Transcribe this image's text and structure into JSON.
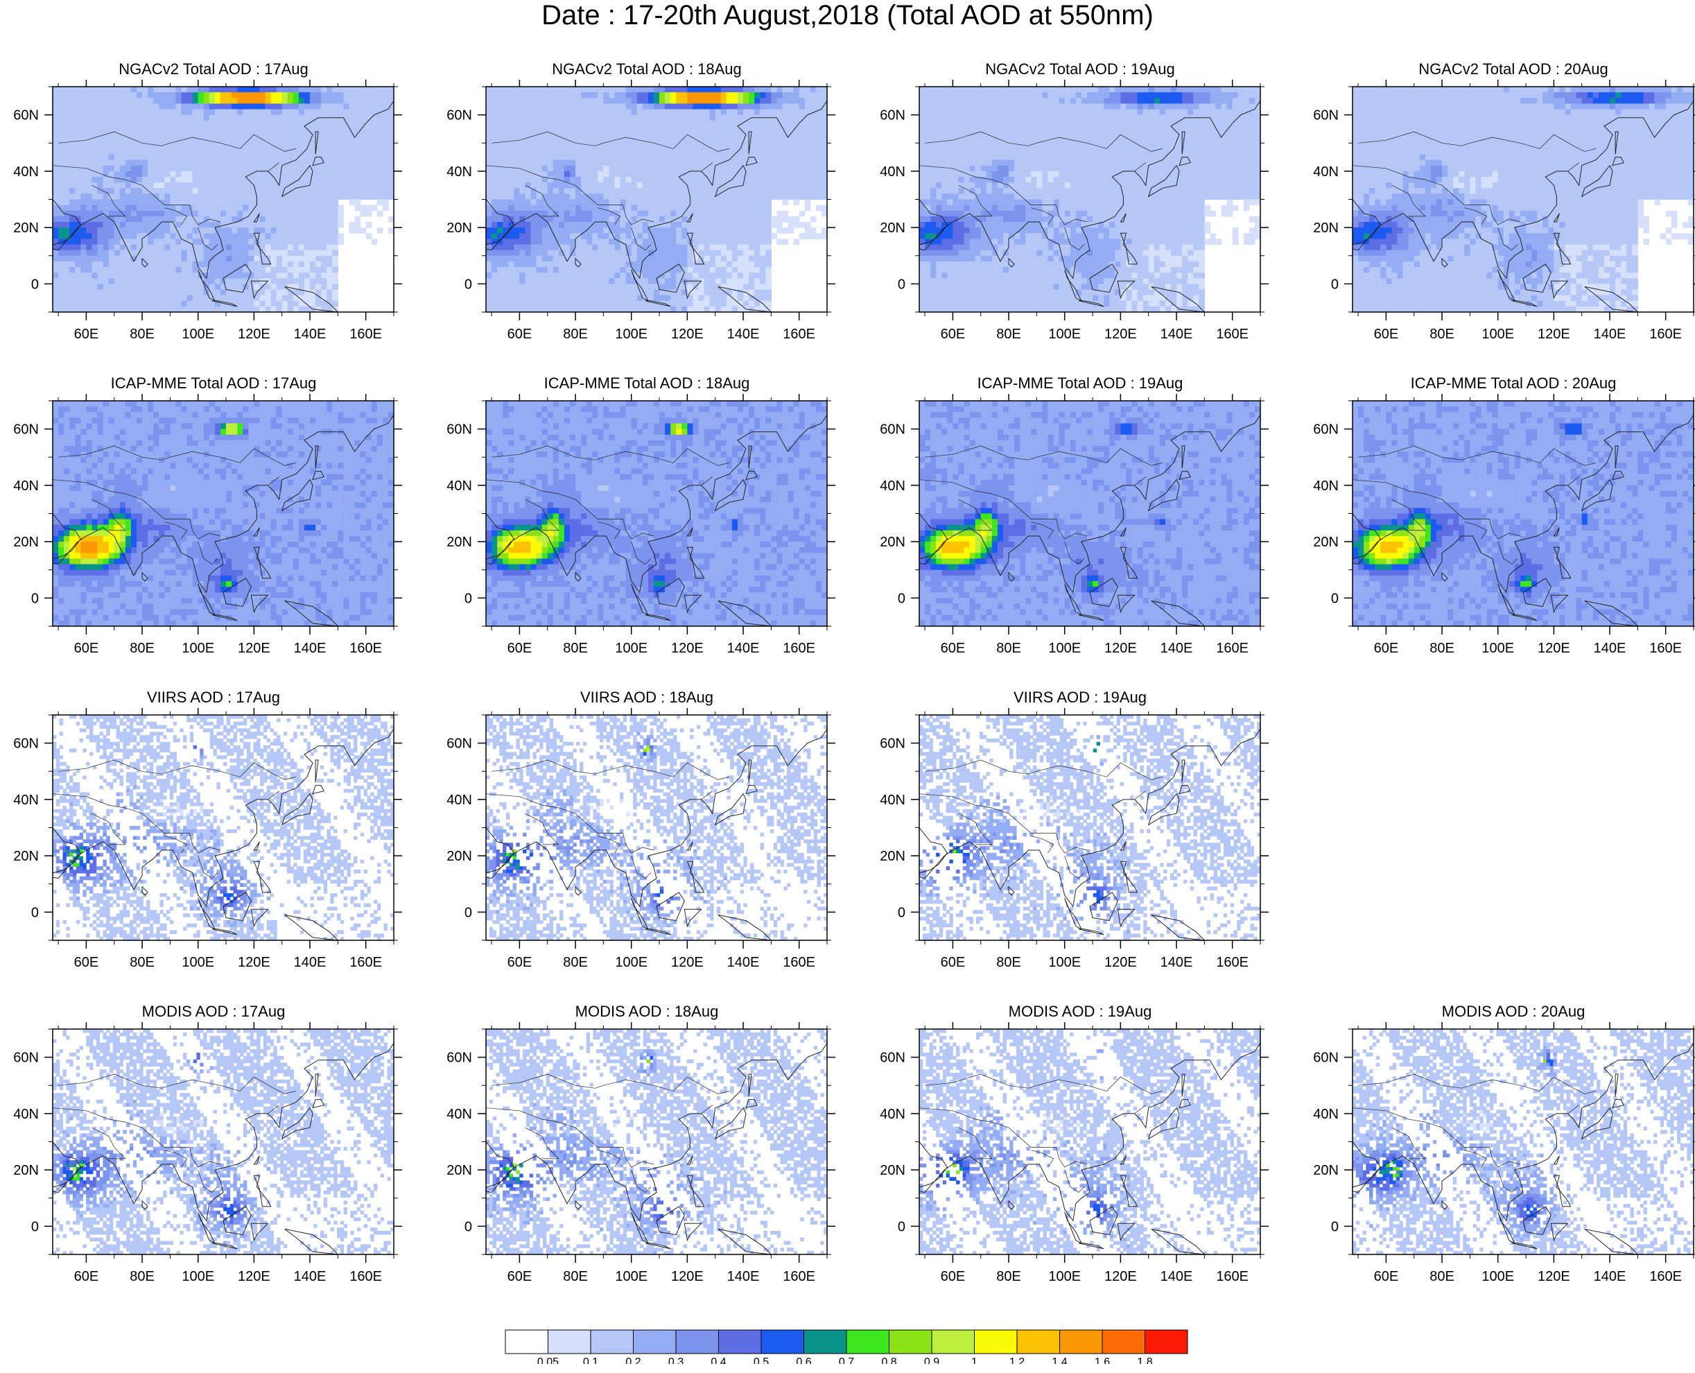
{
  "title": "Date : 17-20th August,2018 (Total AOD at 550nm)",
  "axes": {
    "lon_ticks": [
      "60E",
      "80E",
      "100E",
      "120E",
      "140E",
      "160E"
    ],
    "lat_ticks": [
      "60N",
      "40N",
      "20N",
      "0"
    ]
  },
  "panels": [
    {
      "label": "NGACv2 Total AOD : 17Aug",
      "model": "ngac",
      "variant": 0
    },
    {
      "label": "NGACv2 Total AOD : 18Aug",
      "model": "ngac",
      "variant": 1
    },
    {
      "label": "NGACv2 Total AOD : 19Aug",
      "model": "ngac",
      "variant": 2
    },
    {
      "label": "NGACv2 Total AOD : 20Aug",
      "model": "ngac",
      "variant": 3
    },
    {
      "label": "ICAP-MME Total AOD : 17Aug",
      "model": "icap",
      "variant": 0
    },
    {
      "label": "ICAP-MME Total AOD : 18Aug",
      "model": "icap",
      "variant": 1
    },
    {
      "label": "ICAP-MME Total AOD : 19Aug",
      "model": "icap",
      "variant": 2
    },
    {
      "label": "ICAP-MME Total AOD : 20Aug",
      "model": "icap",
      "variant": 3
    },
    {
      "label": "VIIRS AOD : 17Aug",
      "model": "viirs",
      "variant": 0
    },
    {
      "label": "VIIRS AOD : 18Aug",
      "model": "viirs",
      "variant": 1
    },
    {
      "label": "VIIRS AOD : 19Aug",
      "model": "viirs",
      "variant": 2
    },
    {
      "label": "MODIS AOD : 17Aug",
      "model": "modis",
      "variant": 0
    },
    {
      "label": "MODIS AOD : 18Aug",
      "model": "modis",
      "variant": 1
    },
    {
      "label": "MODIS AOD : 19Aug",
      "model": "modis",
      "variant": 2
    },
    {
      "label": "MODIS AOD : 20Aug",
      "model": "modis",
      "variant": 3
    }
  ],
  "colorbar": {
    "labels": [
      "0.05",
      "0.1",
      "0.2",
      "0.3",
      "0.4",
      "0.5",
      "0.6",
      "0.7",
      "0.8",
      "0.9",
      "1",
      "1.2",
      "1.4",
      "1.6",
      "1.8"
    ],
    "colors": [
      "#ffffff",
      "#d6e0fb",
      "#b5c7f6",
      "#93acf3",
      "#7c94ee",
      "#5e6fe6",
      "#1d5bf0",
      "#0b938d",
      "#3ee61f",
      "#8be217",
      "#bdef3d",
      "#fbfb05",
      "#fbc105",
      "#fb9705",
      "#fb6c05",
      "#fb1b05"
    ]
  }
}
